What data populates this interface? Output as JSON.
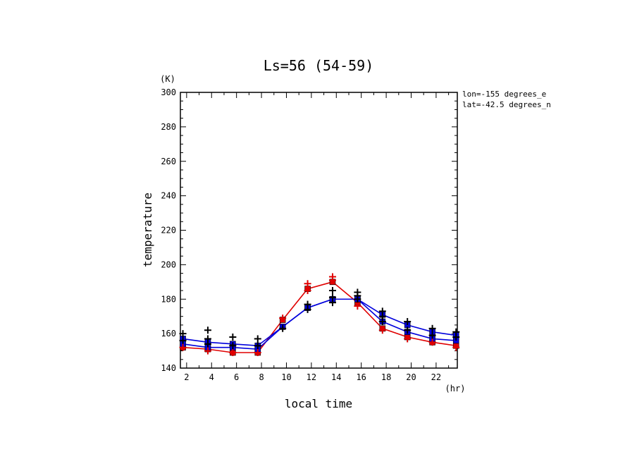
{
  "chart_data": {
    "type": "line",
    "title": "Ls=56 (54-59)",
    "xlabel": "local time",
    "ylabel": "temperature",
    "x_unit": "(hr)",
    "y_unit": "(K)",
    "xlim": [
      1.5,
      23.7
    ],
    "ylim": [
      140,
      300
    ],
    "x_ticks": [
      2,
      4,
      6,
      8,
      10,
      12,
      14,
      16,
      18,
      20,
      22
    ],
    "y_ticks": [
      140,
      160,
      180,
      200,
      220,
      240,
      260,
      280,
      300
    ],
    "annotations": [
      "lon=-155 degrees_e",
      "lat=-42.5 degrees_n"
    ],
    "grid": false,
    "x": [
      1.7,
      3.7,
      5.7,
      7.7,
      9.7,
      11.7,
      13.7,
      15.7,
      17.7,
      19.7,
      21.7,
      23.6
    ],
    "series": [
      {
        "color": "#e00000",
        "marker": "square",
        "values": [
          152,
          151,
          149,
          149,
          168,
          186,
          190,
          178,
          163,
          158,
          155,
          153
        ]
      },
      {
        "color": "#0000dd",
        "marker": "square",
        "values": [
          157,
          155,
          154,
          153,
          164,
          175,
          180,
          180,
          171,
          165,
          161,
          159
        ]
      },
      {
        "color": "#0000dd",
        "marker": "square",
        "values": [
          154,
          152,
          152,
          151,
          164,
          175,
          180,
          180,
          167,
          161,
          157,
          156
        ]
      }
    ],
    "scatter_points": [
      {
        "x": 1.7,
        "y": 160,
        "color": "#000000"
      },
      {
        "x": 1.7,
        "y": 156,
        "color": "#000000"
      },
      {
        "x": 1.7,
        "y": 152,
        "color": "#e00000"
      },
      {
        "x": 3.7,
        "y": 162,
        "color": "#000000"
      },
      {
        "x": 3.7,
        "y": 157,
        "color": "#000000"
      },
      {
        "x": 3.7,
        "y": 154,
        "color": "#000000"
      },
      {
        "x": 3.7,
        "y": 150,
        "color": "#e00000"
      },
      {
        "x": 5.7,
        "y": 158,
        "color": "#000000"
      },
      {
        "x": 5.7,
        "y": 153,
        "color": "#000000"
      },
      {
        "x": 5.7,
        "y": 149,
        "color": "#e00000"
      },
      {
        "x": 7.7,
        "y": 157,
        "color": "#000000"
      },
      {
        "x": 7.7,
        "y": 153,
        "color": "#000000"
      },
      {
        "x": 7.7,
        "y": 149,
        "color": "#e00000"
      },
      {
        "x": 9.7,
        "y": 163,
        "color": "#000000"
      },
      {
        "x": 9.7,
        "y": 169,
        "color": "#e00000"
      },
      {
        "x": 11.7,
        "y": 177,
        "color": "#000000"
      },
      {
        "x": 11.7,
        "y": 174,
        "color": "#000000"
      },
      {
        "x": 11.7,
        "y": 189,
        "color": "#e00000"
      },
      {
        "x": 11.7,
        "y": 185,
        "color": "#e00000"
      },
      {
        "x": 13.7,
        "y": 185,
        "color": "#000000"
      },
      {
        "x": 13.7,
        "y": 181,
        "color": "#000000"
      },
      {
        "x": 13.7,
        "y": 178,
        "color": "#000000"
      },
      {
        "x": 13.7,
        "y": 193,
        "color": "#e00000"
      },
      {
        "x": 13.7,
        "y": 191,
        "color": "#e00000"
      },
      {
        "x": 15.7,
        "y": 184,
        "color": "#000000"
      },
      {
        "x": 15.7,
        "y": 182,
        "color": "#000000"
      },
      {
        "x": 15.7,
        "y": 180,
        "color": "#000000"
      },
      {
        "x": 15.7,
        "y": 176,
        "color": "#e00000"
      },
      {
        "x": 17.7,
        "y": 173,
        "color": "#000000"
      },
      {
        "x": 17.7,
        "y": 170,
        "color": "#000000"
      },
      {
        "x": 17.7,
        "y": 167,
        "color": "#000000"
      },
      {
        "x": 17.7,
        "y": 162,
        "color": "#e00000"
      },
      {
        "x": 19.7,
        "y": 167,
        "color": "#000000"
      },
      {
        "x": 19.7,
        "y": 162,
        "color": "#000000"
      },
      {
        "x": 19.7,
        "y": 157,
        "color": "#e00000"
      },
      {
        "x": 21.7,
        "y": 163,
        "color": "#000000"
      },
      {
        "x": 21.7,
        "y": 159,
        "color": "#000000"
      },
      {
        "x": 21.7,
        "y": 155,
        "color": "#e00000"
      },
      {
        "x": 23.6,
        "y": 161,
        "color": "#000000"
      },
      {
        "x": 23.6,
        "y": 158,
        "color": "#000000"
      },
      {
        "x": 23.6,
        "y": 152,
        "color": "#e00000"
      }
    ]
  }
}
